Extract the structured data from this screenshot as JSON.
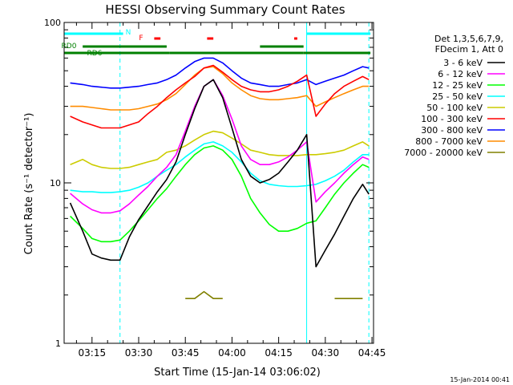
{
  "chart_data": {
    "type": "line",
    "title": "HESSI Observing Summary Count Rates",
    "xlabel": "Start Time (15-Jan-14 03:06:02)",
    "ylabel": "Count Rate (s⁻¹ detector⁻¹)",
    "footer": "15-Jan-2014 00:41",
    "yscale": "log",
    "ylim": [
      1,
      100
    ],
    "xlim": [
      "03:06:02",
      "04:45:30"
    ],
    "x_ticks": [
      "03:15",
      "03:30",
      "03:45",
      "04:00",
      "04:15",
      "04:30",
      "04:45"
    ],
    "y_tick_labels": [
      "1",
      "10",
      "100"
    ],
    "legend_title": [
      "Det 1,3,5,6,7,9,",
      "FDecim 1, Att 0"
    ],
    "legend_position": "right",
    "grid": false,
    "series": [
      {
        "name": "3 - 6 keV",
        "color": "#000000",
        "x": [
          "03:08",
          "03:12",
          "03:15",
          "03:18",
          "03:21",
          "03:24",
          "03:27",
          "03:30",
          "03:33",
          "03:36",
          "03:39",
          "03:42",
          "03:45",
          "03:48",
          "03:51",
          "03:54",
          "03:57",
          "04:00",
          "04:03",
          "04:06",
          "04:09",
          "04:12",
          "04:15",
          "04:18",
          "04:21",
          "04:24",
          "04:27",
          "04:30",
          "04:33",
          "04:36",
          "04:39",
          "04:42",
          "04:44"
        ],
        "y": [
          7.5,
          5.0,
          3.6,
          3.4,
          3.3,
          3.3,
          4.6,
          5.9,
          7.2,
          8.8,
          10.5,
          13.5,
          20,
          29,
          40,
          44,
          34,
          22,
          14,
          11,
          10,
          10.5,
          11.5,
          13.5,
          16,
          20,
          3.0,
          3.8,
          4.8,
          6.2,
          8.0,
          9.8,
          8.5
        ]
      },
      {
        "name": "6 - 12 keV",
        "color": "#ff00ff",
        "x": [
          "03:08",
          "03:12",
          "03:15",
          "03:18",
          "03:21",
          "03:24",
          "03:27",
          "03:30",
          "03:33",
          "03:36",
          "03:39",
          "03:42",
          "03:45",
          "03:48",
          "03:51",
          "03:54",
          "03:57",
          "04:00",
          "04:03",
          "04:06",
          "04:09",
          "04:12",
          "04:15",
          "04:18",
          "04:21",
          "04:24",
          "04:27",
          "04:30",
          "04:33",
          "04:36",
          "04:39",
          "04:42",
          "04:44"
        ],
        "y": [
          8.6,
          7.4,
          6.8,
          6.5,
          6.5,
          6.7,
          7.4,
          8.4,
          9.5,
          11,
          12.5,
          15,
          21,
          30,
          40,
          44,
          35,
          25,
          17,
          14,
          13,
          13,
          13.5,
          14.5,
          16,
          18,
          7.6,
          8.8,
          10,
          11.5,
          13,
          14.5,
          14
        ]
      },
      {
        "name": "12 - 25 keV",
        "color": "#00ff00",
        "x": [
          "03:08",
          "03:12",
          "03:15",
          "03:18",
          "03:21",
          "03:24",
          "03:27",
          "03:30",
          "03:33",
          "03:36",
          "03:39",
          "03:42",
          "03:45",
          "03:48",
          "03:51",
          "03:54",
          "03:57",
          "04:00",
          "04:03",
          "04:06",
          "04:09",
          "04:12",
          "04:15",
          "04:18",
          "04:21",
          "04:24",
          "04:27",
          "04:30",
          "04:33",
          "04:36",
          "04:39",
          "04:42",
          "04:44"
        ],
        "y": [
          6.2,
          5.2,
          4.5,
          4.3,
          4.3,
          4.4,
          5.0,
          5.8,
          6.8,
          8.0,
          9.2,
          11,
          13,
          15,
          16.5,
          17,
          16,
          14,
          11,
          8.0,
          6.5,
          5.5,
          5.0,
          5.0,
          5.2,
          5.6,
          5.8,
          7.0,
          8.5,
          10,
          11.5,
          13,
          12.5
        ]
      },
      {
        "name": "25 - 50 keV",
        "color": "#00ffff",
        "x": [
          "03:08",
          "03:12",
          "03:15",
          "03:18",
          "03:21",
          "03:24",
          "03:27",
          "03:30",
          "03:33",
          "03:36",
          "03:39",
          "03:42",
          "03:45",
          "03:48",
          "03:51",
          "03:54",
          "03:57",
          "04:00",
          "04:03",
          "04:06",
          "04:09",
          "04:12",
          "04:15",
          "04:18",
          "04:21",
          "04:24",
          "04:27",
          "04:30",
          "04:33",
          "04:36",
          "04:39",
          "04:42",
          "04:44"
        ],
        "y": [
          9.0,
          8.8,
          8.8,
          8.7,
          8.7,
          8.8,
          9.0,
          9.4,
          10,
          11,
          12,
          13,
          14.5,
          16,
          17.5,
          18,
          17,
          15.5,
          13.5,
          11.5,
          10.3,
          9.8,
          9.6,
          9.5,
          9.5,
          9.6,
          9.8,
          10.3,
          11,
          12,
          13.5,
          15,
          15
        ]
      },
      {
        "name": "50 - 100 keV",
        "color": "#cccc00",
        "x": [
          "03:08",
          "03:12",
          "03:15",
          "03:18",
          "03:21",
          "03:24",
          "03:27",
          "03:30",
          "03:33",
          "03:36",
          "03:39",
          "03:42",
          "03:45",
          "03:48",
          "03:51",
          "03:54",
          "03:57",
          "04:00",
          "04:03",
          "04:06",
          "04:09",
          "04:12",
          "04:15",
          "04:18",
          "04:21",
          "04:24",
          "04:27",
          "04:30",
          "04:33",
          "04:36",
          "04:39",
          "04:42",
          "04:44"
        ],
        "y": [
          13,
          14,
          13,
          12.5,
          12.3,
          12.3,
          12.5,
          13,
          13.5,
          14,
          15.5,
          16,
          17,
          18.5,
          20,
          21,
          20.5,
          19,
          17.5,
          16,
          15.5,
          15,
          14.8,
          14.8,
          14.8,
          15,
          15,
          15.2,
          15.5,
          16,
          17,
          18,
          17
        ]
      },
      {
        "name": "100 - 300 keV",
        "color": "#ff0000",
        "x": [
          "03:08",
          "03:12",
          "03:15",
          "03:18",
          "03:21",
          "03:24",
          "03:27",
          "03:30",
          "03:33",
          "03:36",
          "03:39",
          "03:42",
          "03:45",
          "03:48",
          "03:51",
          "03:54",
          "03:57",
          "04:00",
          "04:03",
          "04:06",
          "04:09",
          "04:12",
          "04:15",
          "04:18",
          "04:21",
          "04:24",
          "04:27",
          "04:30",
          "04:33",
          "04:36",
          "04:39",
          "04:42",
          "04:44"
        ],
        "y": [
          26,
          24,
          23,
          22,
          22,
          22,
          23,
          24,
          27,
          30,
          34,
          38,
          42,
          46,
          52,
          54,
          49,
          44,
          40,
          38,
          37,
          37,
          38,
          40,
          43,
          47,
          26,
          31,
          36,
          40,
          43,
          46,
          44
        ]
      },
      {
        "name": "300 - 800 keV",
        "color": "#0000ff",
        "x": [
          "03:08",
          "03:12",
          "03:15",
          "03:18",
          "03:21",
          "03:24",
          "03:27",
          "03:30",
          "03:33",
          "03:36",
          "03:39",
          "03:42",
          "03:45",
          "03:48",
          "03:51",
          "03:54",
          "03:57",
          "04:00",
          "04:03",
          "04:06",
          "04:09",
          "04:12",
          "04:15",
          "04:18",
          "04:21",
          "04:24",
          "04:27",
          "04:30",
          "04:33",
          "04:36",
          "04:39",
          "04:42",
          "04:44"
        ],
        "y": [
          42,
          41,
          40,
          39.5,
          39,
          39,
          39.5,
          40,
          41,
          42,
          44,
          47,
          52,
          57,
          60,
          60,
          56,
          50,
          45,
          42,
          41,
          40,
          40,
          41,
          42,
          44,
          41,
          43,
          45,
          47,
          50,
          53,
          52
        ]
      },
      {
        "name": "800 - 7000 keV",
        "color": "#ff8c00",
        "x": [
          "03:08",
          "03:12",
          "03:15",
          "03:18",
          "03:21",
          "03:24",
          "03:27",
          "03:30",
          "03:33",
          "03:36",
          "03:39",
          "03:42",
          "03:45",
          "03:48",
          "03:51",
          "03:54",
          "03:57",
          "04:00",
          "04:03",
          "04:06",
          "04:09",
          "04:12",
          "04:15",
          "04:18",
          "04:21",
          "04:24",
          "04:27",
          "04:30",
          "04:33",
          "04:36",
          "04:39",
          "04:42",
          "04:44"
        ],
        "y": [
          30,
          30,
          29.5,
          29,
          28.5,
          28.5,
          28.5,
          29,
          30,
          31,
          33,
          36,
          41,
          47,
          52,
          53,
          48,
          42,
          38,
          35,
          33.5,
          33,
          33,
          33.5,
          34,
          35,
          30,
          32,
          34,
          36,
          38,
          40,
          40
        ]
      },
      {
        "name": "7000 - 20000 keV",
        "color": "#808000",
        "x": [
          "03:08",
          "03:12",
          "03:15",
          "03:18",
          "03:21",
          "03:24",
          "03:27",
          "03:30",
          "03:33",
          "03:36",
          "03:39",
          "03:42",
          "03:45",
          "03:48",
          "03:51",
          "03:54",
          "03:57",
          "04:00",
          "04:03",
          "04:06",
          "04:09",
          "04:12",
          "04:15",
          "04:18",
          "04:21",
          "04:24",
          "04:27",
          "04:30",
          "04:33",
          "04:36",
          "04:39",
          "04:42",
          "04:44"
        ],
        "y": [
          null,
          null,
          null,
          null,
          null,
          null,
          null,
          null,
          null,
          null,
          null,
          null,
          1.9,
          1.9,
          2.1,
          1.9,
          1.9,
          null,
          null,
          null,
          null,
          null,
          null,
          null,
          null,
          null,
          null,
          null,
          1.9,
          1.9,
          1.9,
          1.9,
          null
        ]
      }
    ],
    "flag_bars": [
      {
        "label": "N",
        "color": "#00ffff",
        "segments": [
          [
            "03:06:02",
            "03:25"
          ],
          [
            "04:24",
            "04:44:30"
          ]
        ]
      },
      {
        "label": "F",
        "color": "#ff0000",
        "segments": [
          [
            "03:35",
            "03:37"
          ],
          [
            "03:52",
            "03:54"
          ],
          [
            "04:20",
            "04:21"
          ]
        ]
      },
      {
        "label": "RD0",
        "color": "#008000",
        "segments": [
          [
            "03:12",
            "03:39"
          ],
          [
            "04:09",
            "04:23"
          ]
        ]
      },
      {
        "label": "RD6",
        "color": "#008000",
        "segments": [
          [
            "03:06:02",
            "03:40"
          ],
          [
            "03:40",
            "04:23"
          ],
          [
            "04:23",
            "04:44:30"
          ]
        ]
      }
    ],
    "vertical_markers": [
      {
        "time": "03:24",
        "color": "#00ffff",
        "style": "dashed"
      },
      {
        "time": "04:24",
        "color": "#00ffff",
        "style": "solid"
      },
      {
        "time": "04:44",
        "color": "#00ffff",
        "style": "dashed"
      }
    ]
  }
}
